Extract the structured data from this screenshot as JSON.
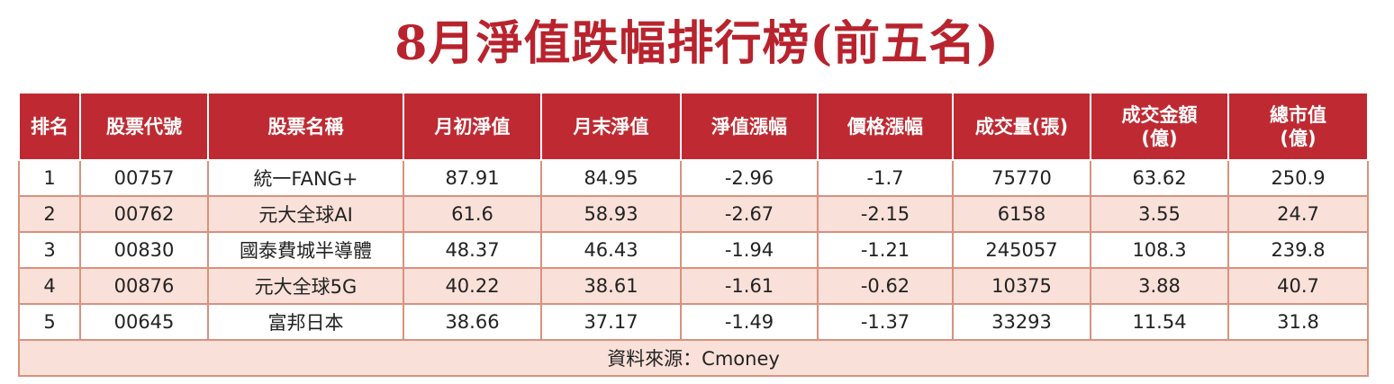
{
  "title": "8月淨值跌幅排行榜(前五名)",
  "table": {
    "headers": [
      "排名",
      "股票代號",
      "股票名稱",
      "月初淨值",
      "月末淨值",
      "淨值漲幅",
      "價格漲幅",
      "成交量(張)",
      "成交金額\n(億)",
      "總市值\n(億)"
    ],
    "rows": [
      [
        "1",
        "00757",
        "統一FANG+",
        "87.91",
        "84.95",
        "-2.96",
        "-1.7",
        "75770",
        "63.62",
        "250.9"
      ],
      [
        "2",
        "00762",
        "元大全球AI",
        "61.6",
        "58.93",
        "-2.67",
        "-2.15",
        "6158",
        "3.55",
        "24.7"
      ],
      [
        "3",
        "00830",
        "國泰費城半導體",
        "48.37",
        "46.43",
        "-1.94",
        "-1.21",
        "245057",
        "108.3",
        "239.8"
      ],
      [
        "4",
        "00876",
        "元大全球5G",
        "40.22",
        "38.61",
        "-1.61",
        "-0.62",
        "10375",
        "3.88",
        "40.7"
      ],
      [
        "5",
        "00645",
        "富邦日本",
        "38.66",
        "37.17",
        "-1.49",
        "-1.37",
        "33293",
        "11.54",
        "31.8"
      ]
    ],
    "source": "資料來源：Cmoney"
  }
}
